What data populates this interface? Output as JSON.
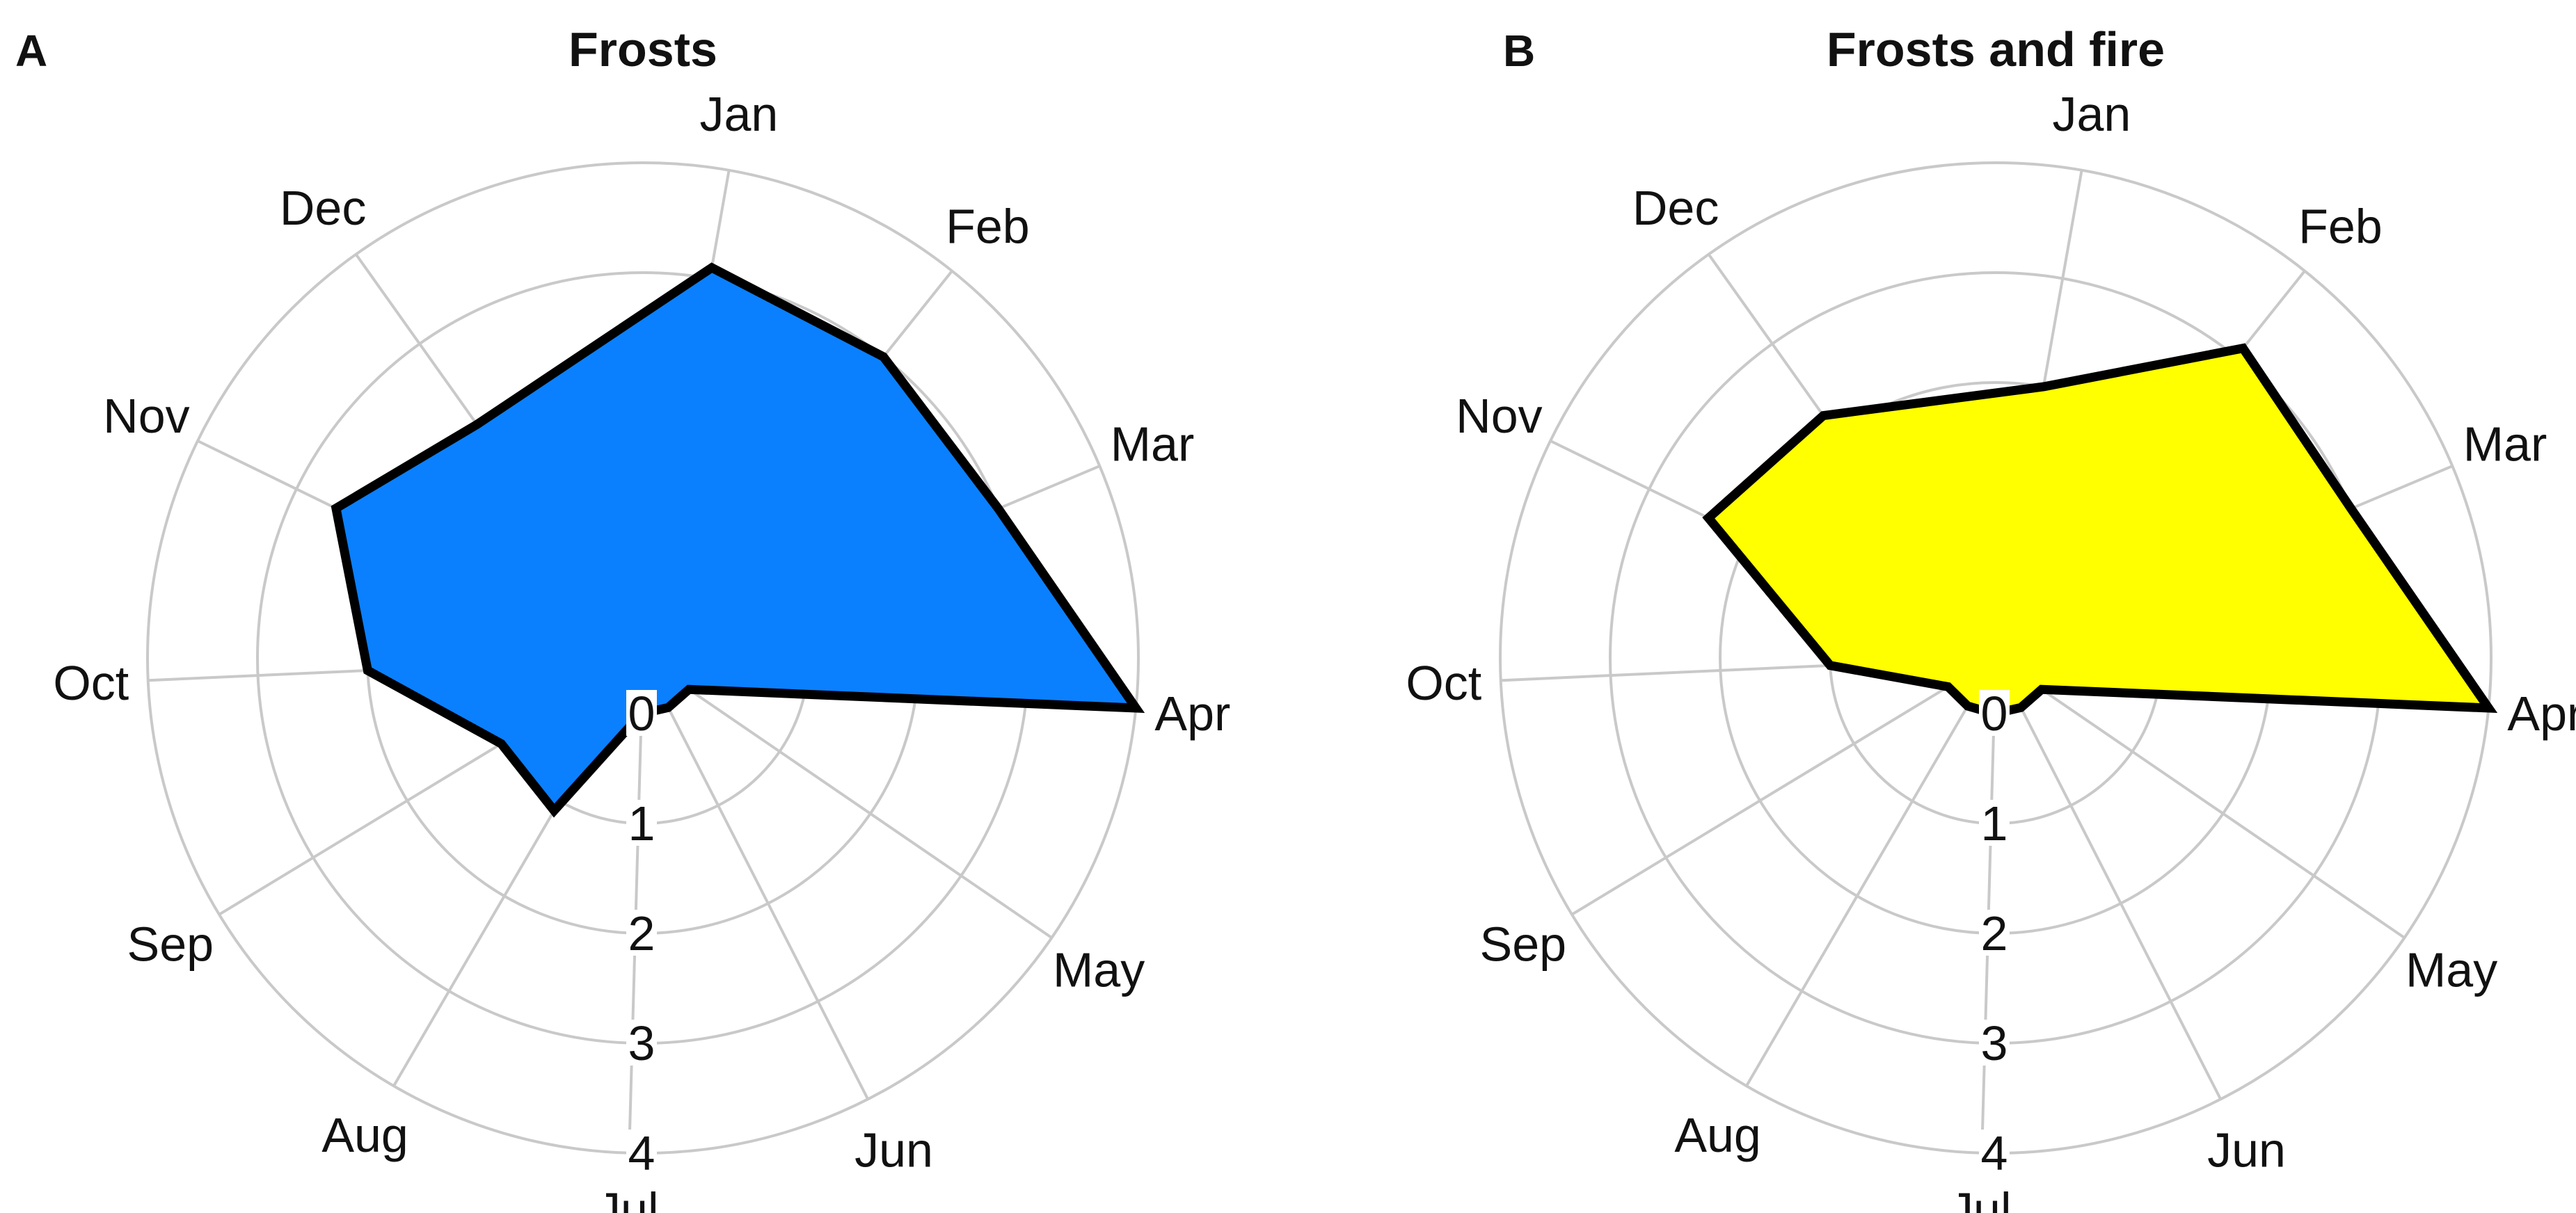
{
  "chart_data": [
    {
      "type": "radar",
      "panel": "A",
      "title": "Frosts",
      "months": [
        "Jan",
        "Feb",
        "Mar",
        "Apr",
        "May",
        "Jun",
        "Jul",
        "Aug",
        "Sep",
        "Oct",
        "Nov",
        "Dec"
      ],
      "values": [
        3.1,
        3.0,
        3.0,
        4.0,
        0.0,
        0.0,
        0.0,
        1.1,
        1.0,
        2.0,
        2.6,
        2.1
      ],
      "r_ticks": [
        "0",
        "1",
        "2",
        "3",
        "4"
      ],
      "rlim": [
        0,
        4
      ],
      "fill_color": "#0a80ff",
      "line_color": "#000000",
      "grid": true
    },
    {
      "type": "radar",
      "panel": "B",
      "title": "Frosts and fire",
      "months": [
        "Jan",
        "Feb",
        "Mar",
        "Apr",
        "May",
        "Jun",
        "Jul",
        "Aug",
        "Sep",
        "Oct",
        "Nov",
        "Dec"
      ],
      "values": [
        2.0,
        3.1,
        3.0,
        4.0,
        0.0,
        0.0,
        0.0,
        0.0,
        0.0,
        1.0,
        2.4,
        2.2
      ],
      "r_ticks": [
        "0",
        "1",
        "2",
        "3",
        "4"
      ],
      "rlim": [
        0,
        4
      ],
      "fill_color": "#ffff00",
      "line_color": "#000000",
      "grid": true
    }
  ]
}
